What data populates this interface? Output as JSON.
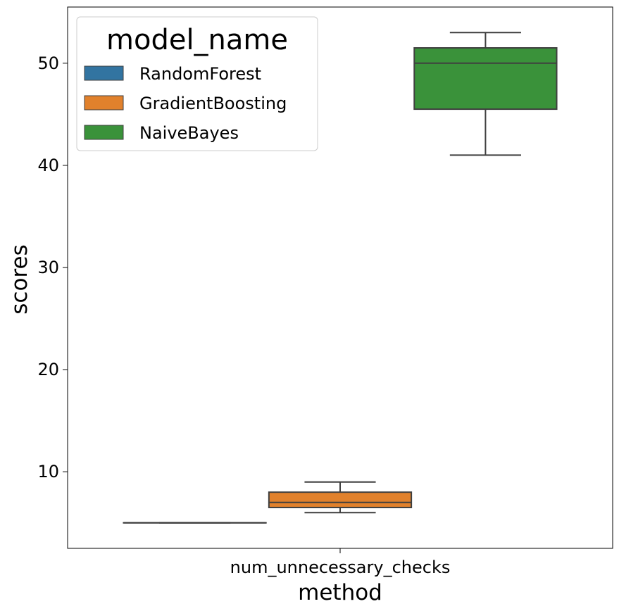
{
  "chart_data": {
    "type": "box",
    "xlabel": "method",
    "ylabel": "scores",
    "categories": [
      "num_unnecessary_checks"
    ],
    "ylim": [
      2.5,
      55.5
    ],
    "yticks": [
      10,
      20,
      30,
      40,
      50
    ],
    "grid": false,
    "legend": {
      "title": "model_name",
      "placement": "top-left",
      "entries": [
        "RandomForest",
        "GradientBoosting",
        "NaiveBayes"
      ]
    },
    "series": [
      {
        "name": "RandomForest",
        "color": "#3274a1",
        "whisker_low": 5,
        "q1": 5,
        "median": 5,
        "q3": 5,
        "whisker_high": 5
      },
      {
        "name": "GradientBoosting",
        "color": "#e1812c",
        "whisker_low": 6,
        "q1": 6.5,
        "median": 7,
        "q3": 8,
        "whisker_high": 9
      },
      {
        "name": "NaiveBayes",
        "color": "#3a923a",
        "whisker_low": 41,
        "q1": 45.5,
        "median": 50,
        "q3": 51.5,
        "whisker_high": 53
      }
    ]
  }
}
